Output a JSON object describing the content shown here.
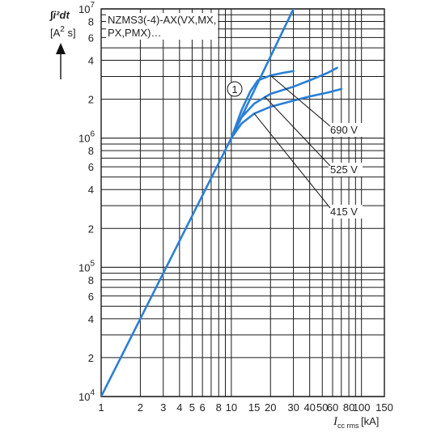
{
  "chart_data": {
    "type": "line",
    "title": "NZMS3(-4)-AX(VX,MX,\nPX,PMX)…",
    "ylabel": "∫i²dt",
    "yunit": "[A² s]",
    "xlabel_main": "I",
    "xlabel_sub": "cc rms",
    "xunit": "[kA]",
    "x_scale": "log",
    "y_scale": "log",
    "xlim": [
      1,
      150
    ],
    "ylim": [
      10000,
      10000000
    ],
    "grid": true,
    "x_ticks": [
      1,
      2,
      3,
      4,
      5,
      6,
      8,
      10,
      15,
      20,
      30,
      40,
      50,
      60,
      80,
      100,
      150
    ],
    "x_tick_labels": [
      "1",
      "2",
      "3",
      "4",
      "5",
      "6",
      "8",
      "10",
      "15",
      "20",
      "30",
      "40",
      "50",
      "60",
      "80",
      "100",
      "150"
    ],
    "y_ticks": [
      {
        "value": 10000,
        "base": "10",
        "exp": "4"
      },
      {
        "value": 20000,
        "base": "2",
        "exp": ""
      },
      {
        "value": 40000,
        "base": "4",
        "exp": ""
      },
      {
        "value": 60000,
        "base": "6",
        "exp": ""
      },
      {
        "value": 80000,
        "base": "8",
        "exp": ""
      },
      {
        "value": 100000,
        "base": "10",
        "exp": "5"
      },
      {
        "value": 200000,
        "base": "2",
        "exp": ""
      },
      {
        "value": 400000,
        "base": "4",
        "exp": ""
      },
      {
        "value": 600000,
        "base": "6",
        "exp": ""
      },
      {
        "value": 800000,
        "base": "8",
        "exp": ""
      },
      {
        "value": 1000000,
        "base": "10",
        "exp": "6"
      },
      {
        "value": 2000000,
        "base": "2",
        "exp": ""
      },
      {
        "value": 4000000,
        "base": "4",
        "exp": ""
      },
      {
        "value": 6000000,
        "base": "6",
        "exp": ""
      },
      {
        "value": 8000000,
        "base": "8",
        "exp": ""
      },
      {
        "value": 10000000,
        "base": "10",
        "exp": "7"
      }
    ],
    "marker_label": "1",
    "series": [
      {
        "points": [
          [
            1,
            10000
          ],
          [
            10,
            1000000
          ],
          [
            30,
            10000000
          ]
        ]
      },
      {
        "name": "690 V",
        "points": [
          [
            10,
            1000000
          ],
          [
            12,
            1650000
          ],
          [
            14,
            2300000
          ],
          [
            16,
            2800000
          ],
          [
            20,
            3050000
          ],
          [
            25,
            3200000
          ],
          [
            30,
            3300000
          ]
        ]
      },
      {
        "name": "525 V",
        "points": [
          [
            10,
            1000000
          ],
          [
            12,
            1450000
          ],
          [
            15,
            1850000
          ],
          [
            20,
            2200000
          ],
          [
            30,
            2500000
          ],
          [
            40,
            2800000
          ],
          [
            55,
            3200000
          ],
          [
            65,
            3500000
          ]
        ]
      },
      {
        "name": "415 V",
        "points": [
          [
            10,
            1000000
          ],
          [
            12,
            1300000
          ],
          [
            15,
            1550000
          ],
          [
            20,
            1750000
          ],
          [
            30,
            1950000
          ],
          [
            40,
            2100000
          ],
          [
            55,
            2250000
          ],
          [
            70,
            2400000
          ]
        ]
      }
    ],
    "colors": {
      "curve": "#2b7fd4",
      "grid": "#1a1a1a",
      "text": "#222222"
    }
  }
}
